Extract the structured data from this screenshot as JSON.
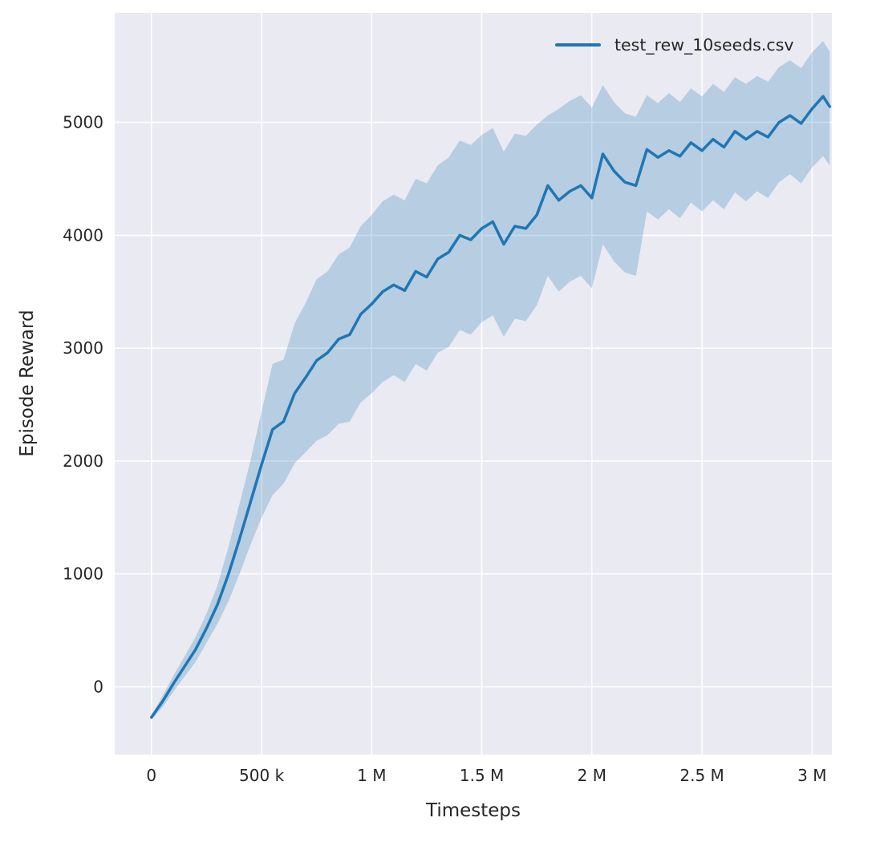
{
  "chart_data": {
    "type": "line",
    "title": "",
    "xlabel": "Timesteps",
    "ylabel": "Episode Reward",
    "legend": [
      {
        "label": "test_rew_10seeds.csv",
        "color": "#1f77b4"
      }
    ],
    "legend_position": "upper right",
    "grid": true,
    "plot_bg": "#eaeaf2",
    "grid_color": "#ffffff",
    "tick_color": "#262626",
    "line_color": "#1f77b4",
    "band_color": "#1f77b4",
    "band_opacity": 0.25,
    "xlim": [
      -167000,
      3090000
    ],
    "ylim": [
      -600,
      5970
    ],
    "xticks": [
      0,
      500000,
      1000000,
      1500000,
      2000000,
      2500000,
      3000000
    ],
    "xtick_labels": [
      "0",
      "500 k",
      "1 M",
      "1.5 M",
      "2 M",
      "2.5 M",
      "3 M"
    ],
    "yticks": [
      0,
      1000,
      2000,
      3000,
      4000,
      5000
    ],
    "ytick_labels": [
      "0",
      "1000",
      "2000",
      "3000",
      "4000",
      "5000"
    ],
    "series": [
      {
        "name": "test_rew_10seeds.csv",
        "x": [
          0,
          50000,
          100000,
          150000,
          200000,
          250000,
          300000,
          350000,
          400000,
          450000,
          500000,
          550000,
          600000,
          650000,
          700000,
          750000,
          800000,
          850000,
          900000,
          950000,
          1000000,
          1050000,
          1100000,
          1150000,
          1200000,
          1250000,
          1300000,
          1350000,
          1400000,
          1450000,
          1500000,
          1550000,
          1600000,
          1650000,
          1700000,
          1750000,
          1800000,
          1850000,
          1900000,
          1950000,
          2000000,
          2050000,
          2100000,
          2150000,
          2200000,
          2250000,
          2300000,
          2350000,
          2400000,
          2450000,
          2500000,
          2550000,
          2600000,
          2650000,
          2700000,
          2750000,
          2800000,
          2850000,
          2900000,
          2950000,
          3000000,
          3050000,
          3080000
        ],
        "mean": [
          -270,
          -130,
          30,
          180,
          330,
          520,
          730,
          1000,
          1310,
          1640,
          1970,
          2280,
          2350,
          2600,
          2740,
          2890,
          2960,
          3080,
          3120,
          3300,
          3390,
          3500,
          3560,
          3510,
          3680,
          3630,
          3790,
          3850,
          4000,
          3960,
          4060,
          4120,
          3920,
          4080,
          4060,
          4180,
          4440,
          4310,
          4390,
          4440,
          4330,
          4720,
          4570,
          4470,
          4440,
          4760,
          4690,
          4750,
          4700,
          4820,
          4750,
          4850,
          4780,
          4920,
          4850,
          4920,
          4870,
          5000,
          5060,
          4990,
          5120,
          5230,
          5140
        ],
        "lower": [
          -290,
          -180,
          -40,
          90,
          220,
          390,
          560,
          760,
          1000,
          1260,
          1500,
          1700,
          1800,
          1980,
          2080,
          2180,
          2230,
          2330,
          2350,
          2520,
          2600,
          2700,
          2760,
          2700,
          2860,
          2800,
          2960,
          3010,
          3160,
          3120,
          3230,
          3290,
          3100,
          3260,
          3240,
          3380,
          3640,
          3500,
          3590,
          3640,
          3530,
          3920,
          3770,
          3670,
          3640,
          4210,
          4140,
          4230,
          4150,
          4290,
          4210,
          4310,
          4230,
          4380,
          4300,
          4390,
          4330,
          4470,
          4540,
          4460,
          4600,
          4700,
          4620
        ],
        "upper": [
          -250,
          -80,
          100,
          270,
          440,
          650,
          900,
          1240,
          1620,
          2010,
          2440,
          2860,
          2900,
          3220,
          3400,
          3610,
          3680,
          3830,
          3890,
          4080,
          4180,
          4300,
          4360,
          4310,
          4500,
          4460,
          4620,
          4690,
          4840,
          4800,
          4890,
          4950,
          4740,
          4900,
          4880,
          4980,
          5060,
          5120,
          5190,
          5240,
          5130,
          5330,
          5180,
          5080,
          5050,
          5240,
          5170,
          5260,
          5180,
          5300,
          5230,
          5340,
          5270,
          5400,
          5340,
          5410,
          5360,
          5490,
          5550,
          5480,
          5620,
          5720,
          5630
        ]
      }
    ]
  }
}
